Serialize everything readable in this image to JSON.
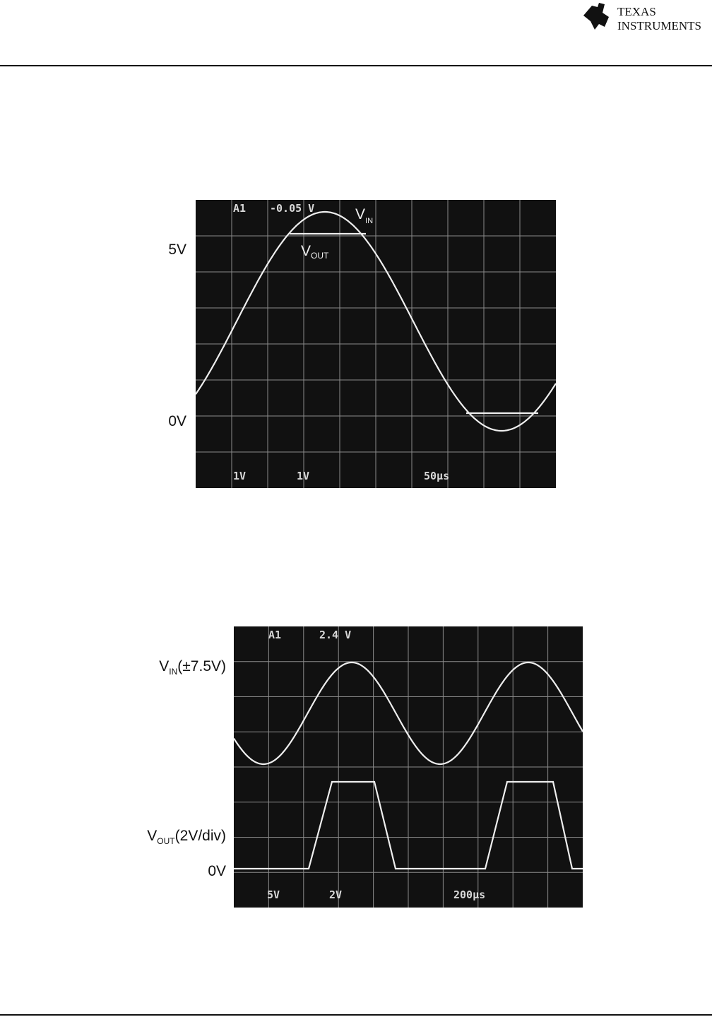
{
  "header": {
    "logo_line1": "TEXAS",
    "logo_line2": "INSTRUMENTS"
  },
  "figures": [
    {
      "scope_overlay": {
        "top_left": "A1",
        "top_value": "-0.05 V",
        "bottom": [
          "1V",
          "1V",
          "50µs"
        ]
      },
      "trace_labels": {
        "vin": {
          "main": "V",
          "sub": "IN"
        },
        "vout": {
          "main": "V",
          "sub": "OUT"
        }
      },
      "side_labels": [
        "5V",
        "0V"
      ]
    },
    {
      "scope_overlay": {
        "top_left": "A1",
        "top_value": "2.4 V",
        "bottom": [
          "5V",
          "2V",
          "200µs"
        ]
      },
      "side_labels": [
        {
          "main": "V",
          "sub": "IN",
          "suffix": "(±7.5V)"
        },
        {
          "main": "V",
          "sub": "OUT",
          "suffix": "(2V/div)"
        },
        "0V"
      ]
    }
  ]
}
